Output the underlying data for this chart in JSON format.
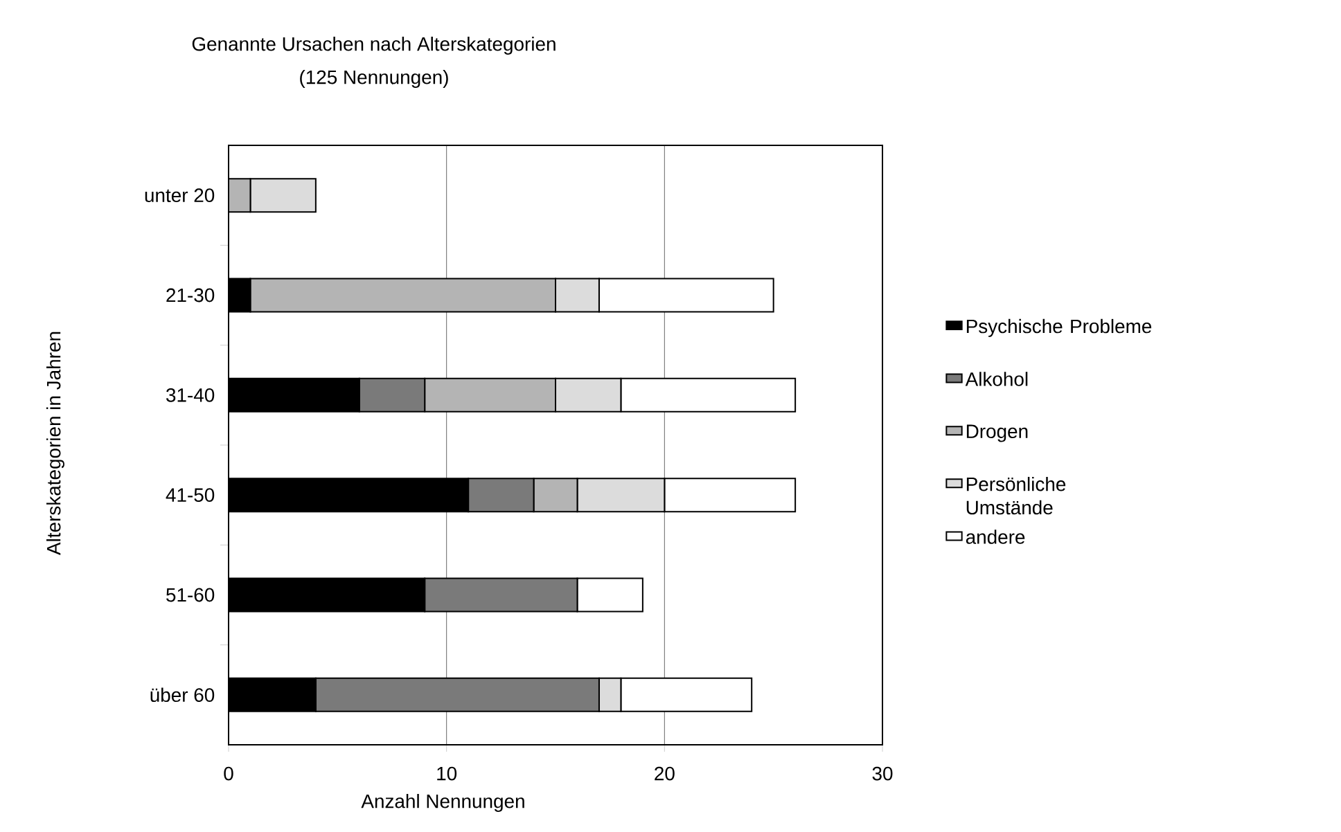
{
  "chart_data": {
    "type": "bar",
    "orientation": "horizontal",
    "stacked": true,
    "title": "Genannte Ursachen nach Alterskategorien",
    "subtitle": "(125 Nennungen)",
    "xlabel": "Anzahl Nennungen",
    "ylabel": "Alterskategorien in Jahren",
    "categories": [
      "unter 20",
      "21-30",
      "31-40",
      "41-50",
      "51-60",
      "über 60"
    ],
    "series": [
      {
        "name": "Psychische Probleme",
        "color": "#000000",
        "values": [
          0,
          1,
          6,
          11,
          9,
          4
        ]
      },
      {
        "name": "Alkohol",
        "color": "#7a7a7a",
        "values": [
          0,
          0,
          3,
          3,
          7,
          13
        ]
      },
      {
        "name": "Drogen",
        "color": "#b4b4b4",
        "values": [
          1,
          14,
          6,
          2,
          0,
          0
        ]
      },
      {
        "name": "Persönliche Umstände",
        "color": "#dcdcdc",
        "values": [
          3,
          2,
          3,
          4,
          0,
          1
        ]
      },
      {
        "name": "andere",
        "color": "#ffffff",
        "values": [
          0,
          8,
          8,
          6,
          3,
          6
        ]
      }
    ],
    "xlim": [
      0,
      30
    ],
    "xticks": [
      0,
      10,
      20,
      30
    ],
    "grid": "x",
    "legend": "right"
  }
}
